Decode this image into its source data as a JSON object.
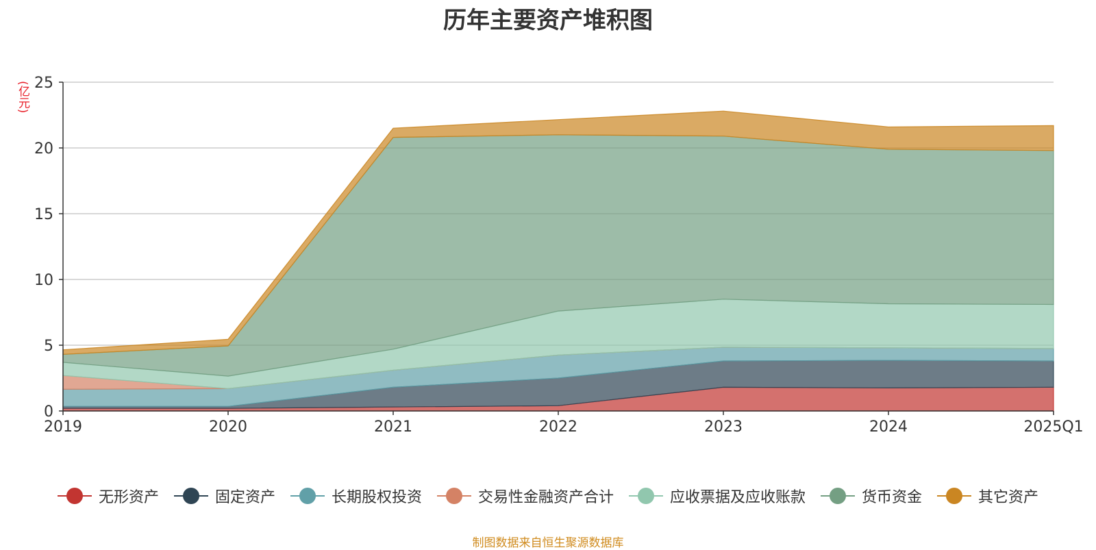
{
  "chart_data": {
    "type": "area",
    "stacked": true,
    "title": "历年主要资产堆积图",
    "ylabel": "(亿元)",
    "xlabel": "",
    "ylim": [
      0,
      25
    ],
    "yticks": [
      0,
      5,
      10,
      15,
      20,
      25
    ],
    "categories": [
      "2019",
      "2020",
      "2021",
      "2022",
      "2023",
      "2024",
      "2025Q1"
    ],
    "grid": true,
    "legend_position": "bottom",
    "series": [
      {
        "name": "无形资产",
        "color": "#c23531",
        "values": [
          0.2,
          0.2,
          0.3,
          0.4,
          1.8,
          1.75,
          1.8
        ]
      },
      {
        "name": "固定资产",
        "color": "#2f4554",
        "values": [
          0.15,
          0.15,
          1.5,
          2.1,
          2.0,
          2.1,
          2.0
        ]
      },
      {
        "name": "长期股权投资",
        "color": "#61a0a8",
        "values": [
          1.3,
          1.35,
          1.3,
          1.75,
          1.05,
          0.95,
          0.95
        ]
      },
      {
        "name": "交易性金融资产合计",
        "color": "#d48265",
        "values": [
          1.05,
          0.0,
          0.0,
          0.0,
          0.0,
          0.0,
          0.0
        ]
      },
      {
        "name": "应收票据及应收账款",
        "color": "#91c7ae",
        "values": [
          1.0,
          0.95,
          1.6,
          3.35,
          3.65,
          3.35,
          3.35
        ]
      },
      {
        "name": "货币资金",
        "color": "#749f83",
        "values": [
          0.6,
          2.3,
          16.1,
          13.4,
          12.4,
          11.75,
          11.7
        ]
      },
      {
        "name": "其它资产",
        "color": "#ca8622",
        "values": [
          0.35,
          0.5,
          0.7,
          1.15,
          1.9,
          1.7,
          1.9
        ]
      }
    ]
  },
  "footer": {
    "source": "制图数据来自恒生聚源数据库"
  }
}
